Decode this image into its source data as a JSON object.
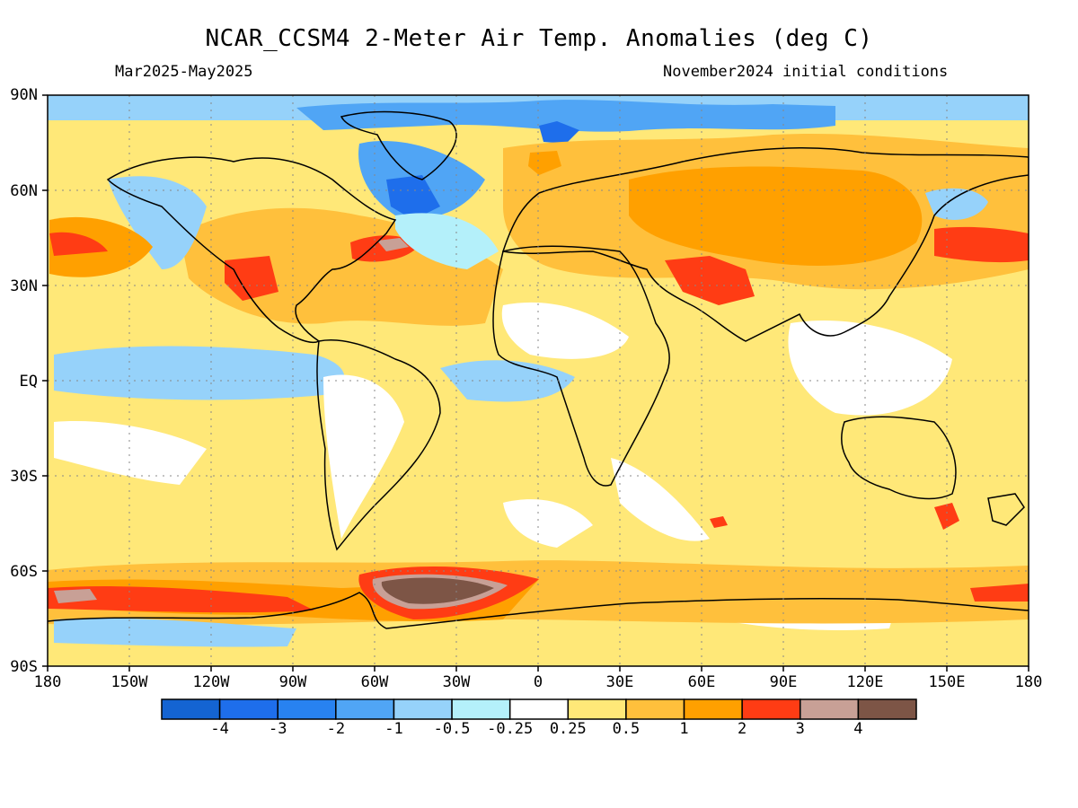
{
  "title": "NCAR_CCSM4 2-Meter Air Temp. Anomalies (deg C)",
  "subtitle_left": "Mar2025-May2025",
  "subtitle_right": "November2024 initial conditions",
  "lat_labels": [
    "90N",
    "60N",
    "30N",
    "EQ",
    "30S",
    "60S",
    "90S"
  ],
  "lon_labels": [
    "180",
    "150W",
    "120W",
    "90W",
    "60W",
    "30W",
    "0",
    "30E",
    "60E",
    "90E",
    "120E",
    "150E",
    "180"
  ],
  "colorbar": {
    "colors": [
      "#1464d2",
      "#1e6eeb",
      "#2882f0",
      "#50a5f5",
      "#96d2fa",
      "#b4f0fa",
      "#ffffff",
      "#ffe878",
      "#ffc03c",
      "#ffa000",
      "#ff3c14",
      "#c8a096",
      "#7d5546"
    ],
    "ticks": [
      "-4",
      "-3",
      "-2",
      "-1",
      "-0.5",
      "-0.25",
      "0.25",
      "0.5",
      "1",
      "2",
      "3",
      "4"
    ]
  },
  "legend_values": {
    "anomaly_background": "#ffe878"
  }
}
